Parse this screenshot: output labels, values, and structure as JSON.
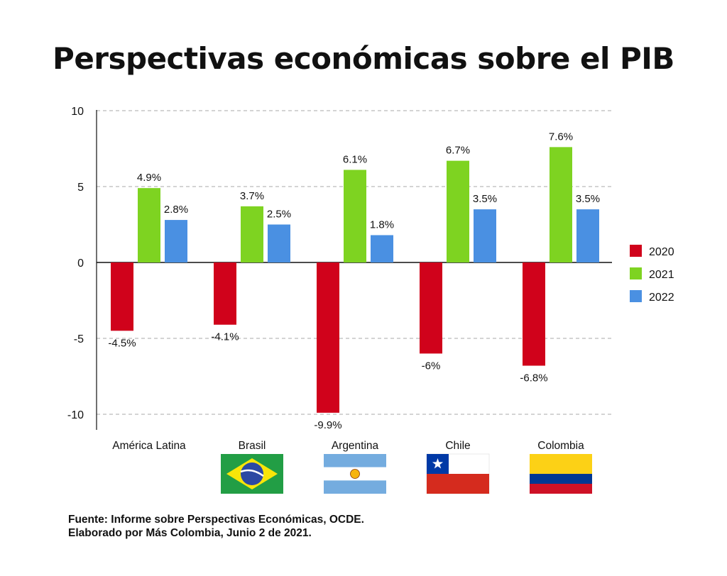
{
  "title": "Perspectivas económicas sobre el PIB",
  "source_line1": "Fuente: Informe sobre Perspectivas Económicas, OCDE.",
  "source_line2": "Elaborado por Más Colombia, Junio 2 de 2021.",
  "colors": {
    "2020": "#d0021b",
    "2021": "#7ed321",
    "2022": "#4a90e2",
    "grid": "#aaaaaa",
    "axis": "#111111"
  },
  "flags": [
    "",
    "brasil-flag",
    "argentina-flag",
    "chile-flag",
    "colombia-flag"
  ],
  "chart_data": {
    "type": "bar",
    "title": "Perspectivas económicas sobre el PIB",
    "xlabel": "",
    "ylabel": "",
    "categories": [
      "América Latina",
      "Brasil",
      "Argentina",
      "Chile",
      "Colombia"
    ],
    "series": [
      {
        "name": "2020",
        "values": [
          -4.5,
          -4.1,
          -9.9,
          -6,
          -6.8
        ],
        "labels": [
          "-4.5%",
          "-4.1%",
          "-9.9%",
          "-6%",
          "-6.8%"
        ]
      },
      {
        "name": "2021",
        "values": [
          4.9,
          3.7,
          6.1,
          6.7,
          7.6
        ],
        "labels": [
          "4.9%",
          "3.7%",
          "6.1%",
          "6.7%",
          "7.6%"
        ]
      },
      {
        "name": "2022",
        "values": [
          2.8,
          2.5,
          1.8,
          3.5,
          3.5
        ],
        "labels": [
          "2.8%",
          "2.5%",
          "1.8%",
          "3.5%",
          "3.5%"
        ]
      }
    ],
    "ylim": [
      -10,
      10
    ],
    "yticks": [
      10,
      5,
      0,
      -5,
      -10
    ],
    "grid": true,
    "legend": "right"
  }
}
